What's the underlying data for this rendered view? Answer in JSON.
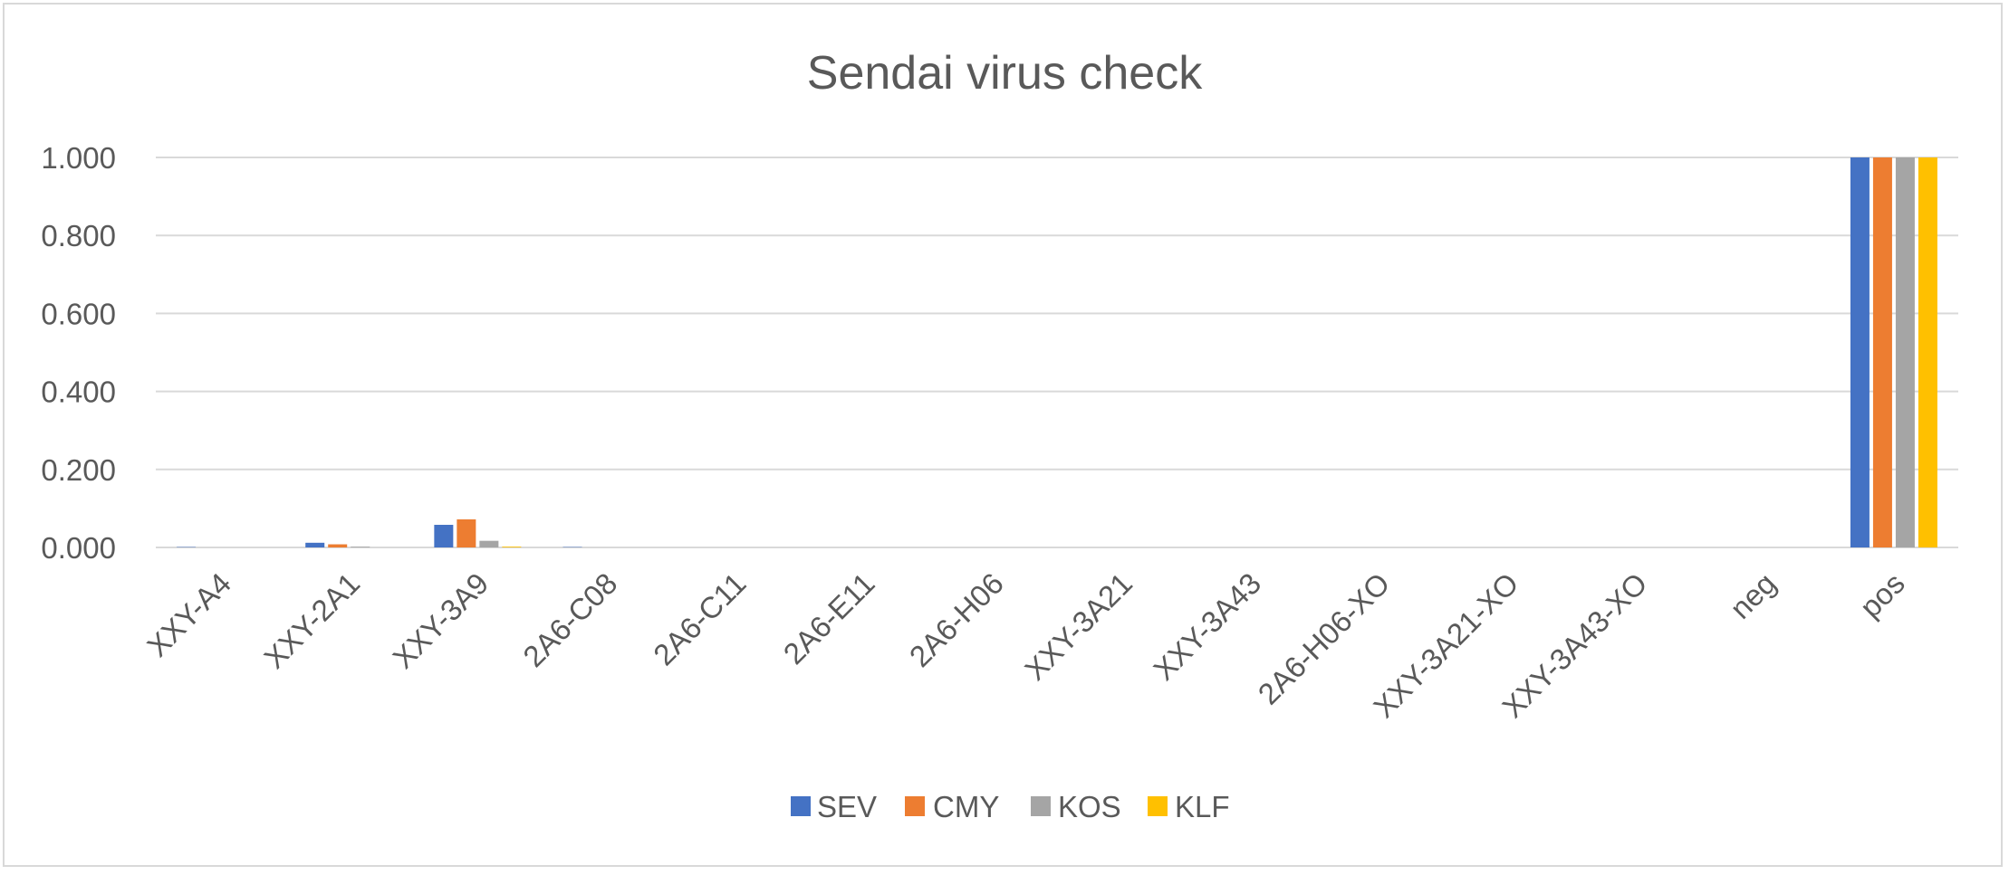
{
  "chart_data": {
    "type": "bar",
    "title": "Sendai virus check",
    "xlabel": "",
    "ylabel": "",
    "ylim": [
      0,
      1.0
    ],
    "yticks": [
      "0.000",
      "0.200",
      "0.400",
      "0.600",
      "0.800",
      "1.000"
    ],
    "ytick_values": [
      0,
      0.2,
      0.4,
      0.6,
      0.8,
      1.0
    ],
    "grid": true,
    "legend_position": "bottom",
    "categories": [
      "XXY-A4",
      "XXY-2A1",
      "XXY-3A9",
      "2A6-C08",
      "2A6-C11",
      "2A6-E11",
      "2A6-H06",
      "XXY-3A21",
      "XXY-3A43",
      "2A6-H06-XO",
      "XXY-3A21-XO",
      "XXY-3A43-XO",
      "neg",
      "pos"
    ],
    "series": [
      {
        "name": "SEV",
        "color": "#4472c4",
        "values": [
          0.001,
          0.012,
          0.058,
          0.001,
          0.0,
          0.0,
          0.0,
          0.0,
          0.0,
          0.0,
          0.0,
          0.0,
          0.0,
          1.0
        ]
      },
      {
        "name": "CMY",
        "color": "#ed7d31",
        "values": [
          0.0,
          0.008,
          0.072,
          0.0,
          0.0,
          0.0,
          0.0,
          0.0,
          0.0,
          0.0,
          0.0,
          0.0,
          0.0,
          1.0
        ]
      },
      {
        "name": "KOS",
        "color": "#a5a5a5",
        "values": [
          0.0,
          0.002,
          0.017,
          0.0,
          0.0,
          0.0,
          0.0,
          0.0,
          0.0,
          0.0,
          0.0,
          0.0,
          0.0,
          1.0
        ]
      },
      {
        "name": "KLF",
        "color": "#ffc000",
        "values": [
          0.0,
          0.0,
          0.002,
          0.0,
          0.0,
          0.0,
          0.0,
          0.0,
          0.0,
          0.0,
          0.0,
          0.0,
          0.0,
          1.0
        ]
      }
    ]
  }
}
